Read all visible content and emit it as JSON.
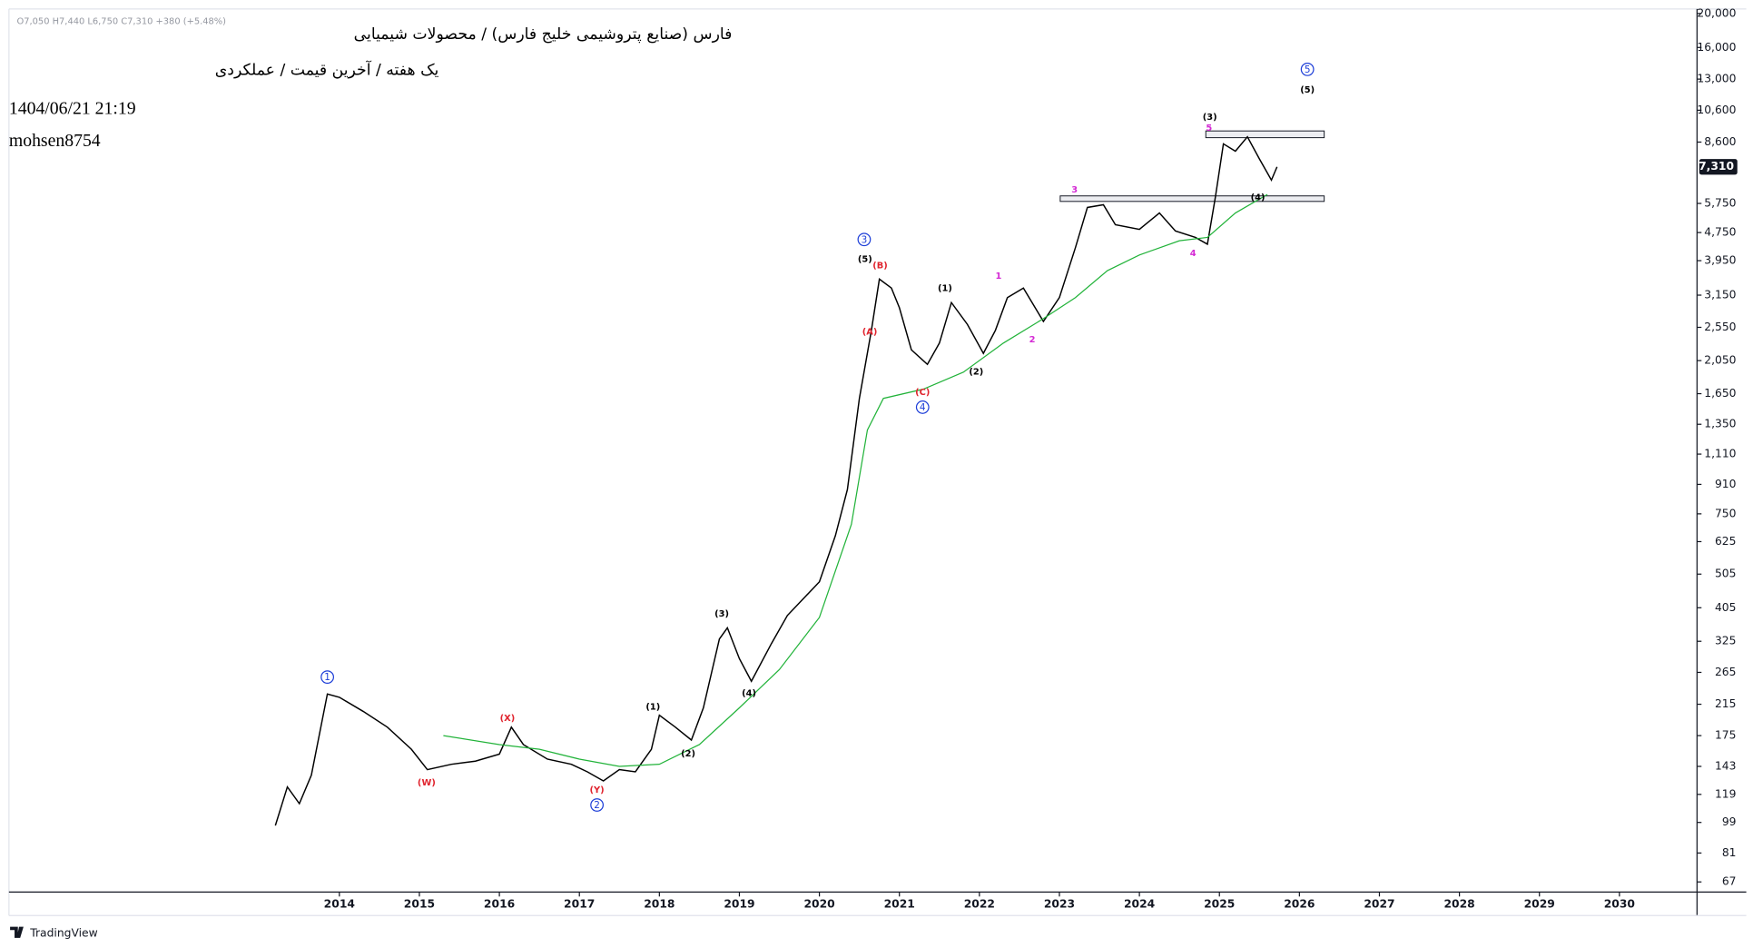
{
  "chart_data": {
    "type": "line",
    "ohlc": "O7,050 H7,440 L6,750 C7,310 +380 (+5.48%)",
    "title": "فارس (صنایع پتروشیمی خلیج فارس) / محصولات شیمیایی",
    "subtitle": "یک هفته / آخرین قیمت / عملکردی",
    "date": "1404/06/21 21:19",
    "author": "mohsen8754",
    "logo": "TradingView",
    "log_scale": true,
    "grid": false,
    "xlim": [
      2009.87,
      2030.97
    ],
    "xticks": [
      2014,
      2015,
      2016,
      2017,
      2018,
      2019,
      2020,
      2021,
      2022,
      2023,
      2024,
      2025,
      2026,
      2027,
      2028,
      2029,
      2030
    ],
    "ylim": [
      62.7,
      20600
    ],
    "yticks": [
      {
        "value": 20000,
        "label": "20,000"
      },
      {
        "value": 16000,
        "label": "16,000"
      },
      {
        "value": 13000,
        "label": "13,000"
      },
      {
        "value": 10600,
        "label": "10,600"
      },
      {
        "value": 8600,
        "label": "8,600"
      },
      {
        "value": 5750,
        "label": "5,750"
      },
      {
        "value": 4750,
        "label": "4,750"
      },
      {
        "value": 3950,
        "label": "3,950"
      },
      {
        "value": 3150,
        "label": "3,150"
      },
      {
        "value": 2550,
        "label": "2,550"
      },
      {
        "value": 2050,
        "label": "2,050"
      },
      {
        "value": 1650,
        "label": "1,650"
      },
      {
        "value": 1350,
        "label": "1,350"
      },
      {
        "value": 1110,
        "label": "1,110"
      },
      910,
      750,
      625,
      505,
      405,
      325,
      265,
      215,
      175,
      143,
      119,
      99,
      81,
      67
    ],
    "last_price": {
      "value": 7310,
      "label": "7,310"
    },
    "series": [
      {
        "color": "#000000",
        "x": [
          2013.2,
          2013.35,
          2013.5,
          2013.65,
          2013.85,
          2014.0,
          2014.3,
          2014.6,
          2014.9,
          2015.1,
          2015.4,
          2015.7,
          2016.0,
          2016.15,
          2016.3,
          2016.6,
          2016.9,
          2017.1,
          2017.3,
          2017.5,
          2017.7,
          2017.9,
          2018.0,
          2018.2,
          2018.4,
          2018.55,
          2018.75,
          2018.85,
          2019.0,
          2019.15,
          2019.4,
          2019.6,
          2019.8,
          2020.0,
          2020.2,
          2020.35,
          2020.5,
          2020.65,
          2020.75,
          2020.9,
          2021.0,
          2021.15,
          2021.35,
          2021.5,
          2021.65,
          2021.85,
          2022.05,
          2022.2,
          2022.35,
          2022.55,
          2022.8,
          2023.0,
          2023.2,
          2023.35,
          2023.55,
          2023.7,
          2024.0,
          2024.25,
          2024.45,
          2024.7,
          2024.85,
          2024.95,
          2025.05,
          2025.2,
          2025.35,
          2025.5,
          2025.65,
          2025.72
        ],
        "values": [
          97,
          125,
          112,
          135,
          230,
          225,
          205,
          185,
          160,
          140,
          145,
          148,
          155,
          185,
          165,
          150,
          145,
          138,
          130,
          140,
          138,
          160,
          200,
          185,
          170,
          210,
          330,
          355,
          290,
          250,
          320,
          385,
          430,
          480,
          650,
          880,
          1600,
          2500,
          3500,
          3300,
          2900,
          2200,
          2000,
          2300,
          3000,
          2600,
          2150,
          2500,
          3100,
          3300,
          2650,
          3100,
          4300,
          5600,
          5700,
          5000,
          4850,
          5400,
          4800,
          4600,
          4400,
          6000,
          8500,
          8100,
          8900,
          7700,
          6700,
          7310
        ]
      },
      {
        "color": "#22b33a",
        "x": [
          2015.3,
          2016.0,
          2016.5,
          2017.0,
          2017.5,
          2018.0,
          2018.5,
          2019.0,
          2019.5,
          2020.0,
          2020.4,
          2020.6,
          2020.8,
          2021.3,
          2021.8,
          2022.3,
          2022.8,
          2023.2,
          2023.6,
          2024.0,
          2024.5,
          2024.85,
          2025.2,
          2025.6
        ],
        "values": [
          175,
          165,
          160,
          150,
          143,
          145,
          165,
          210,
          270,
          380,
          700,
          1300,
          1600,
          1700,
          1900,
          2300,
          2700,
          3100,
          3700,
          4100,
          4500,
          4600,
          5400,
          6100
        ]
      }
    ],
    "zones": [
      {
        "x0": 2024.83,
        "x1": 2026.31,
        "y0": 8852,
        "y1": 9252
      },
      {
        "x0": 2023.01,
        "x1": 2026.31,
        "y0": 5826,
        "y1": 6041
      }
    ],
    "annotations": [
      {
        "text": "1",
        "x": 2013.85,
        "y": 257,
        "color": "#1e3fd8",
        "circled": true
      },
      {
        "text": "(W)",
        "x": 2015.09,
        "y": 129,
        "color": "#e0242e",
        "circled": false
      },
      {
        "text": "(X)",
        "x": 2016.1,
        "y": 197,
        "color": "#e0242e",
        "circled": false
      },
      {
        "text": "(Y)",
        "x": 2017.22,
        "y": 123,
        "color": "#e0242e",
        "circled": false
      },
      {
        "text": "2",
        "x": 2017.22,
        "y": 111,
        "color": "#1e3fd8",
        "circled": true
      },
      {
        "text": "(1)",
        "x": 2017.92,
        "y": 212,
        "color": "#000000",
        "circled": false
      },
      {
        "text": "(2)",
        "x": 2018.36,
        "y": 156,
        "color": "#000000",
        "circled": false
      },
      {
        "text": "(3)",
        "x": 2018.78,
        "y": 391,
        "color": "#000000",
        "circled": false
      },
      {
        "text": "(4)",
        "x": 2019.12,
        "y": 232,
        "color": "#000000",
        "circled": false
      },
      {
        "text": "3",
        "x": 2020.56,
        "y": 4538,
        "color": "#1e3fd8",
        "circled": true
      },
      {
        "text": "(5)",
        "x": 2020.57,
        "y": 4006,
        "color": "#000000",
        "circled": false
      },
      {
        "text": "(B)",
        "x": 2020.76,
        "y": 3834,
        "color": "#e0242e",
        "circled": false
      },
      {
        "text": "(A)",
        "x": 2020.63,
        "y": 2486,
        "color": "#e0242e",
        "circled": false
      },
      {
        "text": "(C)",
        "x": 2021.29,
        "y": 1672,
        "color": "#e0242e",
        "circled": false
      },
      {
        "text": "4",
        "x": 2021.29,
        "y": 1510,
        "color": "#1e3fd8",
        "circled": true
      },
      {
        "text": "(1)",
        "x": 2021.57,
        "y": 3310,
        "color": "#000000",
        "circled": false
      },
      {
        "text": "(2)",
        "x": 2021.96,
        "y": 1910,
        "color": "#000000",
        "circled": false
      },
      {
        "text": "1",
        "x": 2022.24,
        "y": 3588,
        "color": "#d42ad4",
        "circled": false
      },
      {
        "text": "2",
        "x": 2022.66,
        "y": 2360,
        "color": "#d42ad4",
        "circled": false
      },
      {
        "text": "3",
        "x": 2023.19,
        "y": 6314,
        "color": "#d42ad4",
        "circled": false
      },
      {
        "text": "4",
        "x": 2024.67,
        "y": 4156,
        "color": "#d42ad4",
        "circled": false
      },
      {
        "text": "(3)",
        "x": 2024.88,
        "y": 10178,
        "color": "#000000",
        "circled": false
      },
      {
        "text": "5",
        "x": 2024.87,
        "y": 9460,
        "color": "#d42ad4",
        "circled": false
      },
      {
        "text": "(4)",
        "x": 2025.48,
        "y": 6000,
        "color": "#000000",
        "circled": false
      },
      {
        "text": "5",
        "x": 2026.1,
        "y": 13856,
        "color": "#1e3fd8",
        "circled": true
      },
      {
        "text": "(5)",
        "x": 2026.1,
        "y": 12140,
        "color": "#000000",
        "circled": false
      }
    ]
  }
}
